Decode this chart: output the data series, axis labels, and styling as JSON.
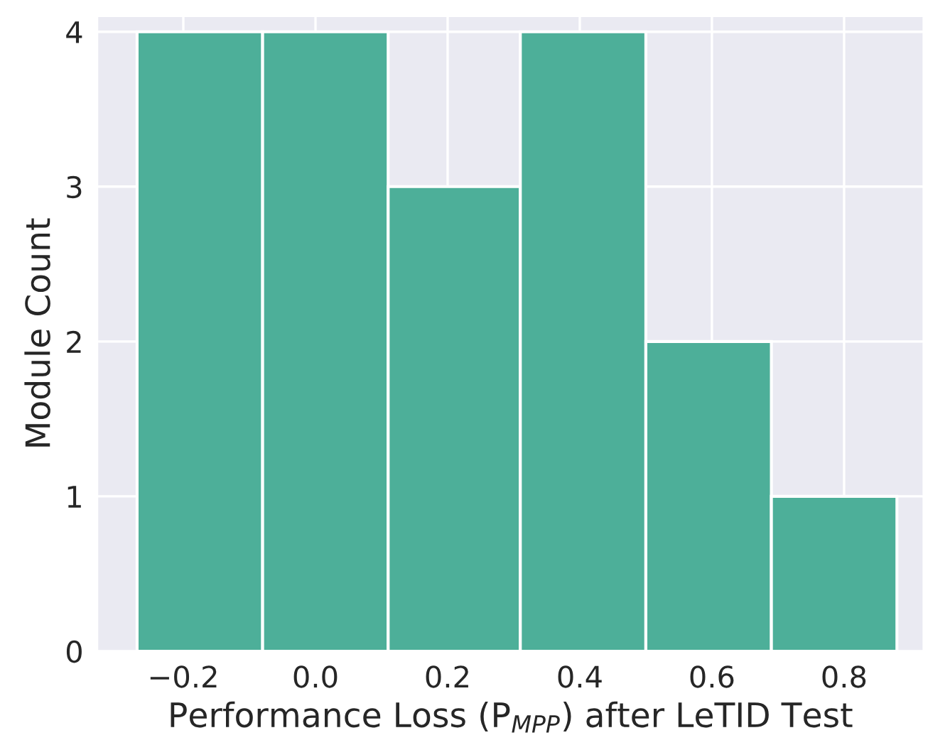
{
  "chart_data": {
    "type": "histogram",
    "xlabel": "Performance Loss (P$_{MPP}$) after LeTID Test",
    "ylabel": "Module Count",
    "bins": [
      -0.27,
      -0.08,
      0.11,
      0.31,
      0.5,
      0.69,
      0.88
    ],
    "values": [
      4,
      4,
      3,
      4,
      2,
      1
    ],
    "color": "#4daf99",
    "xlim": [
      -0.33,
      0.92
    ],
    "ylim": [
      0,
      4.1
    ],
    "xticks": [
      {
        "value": -0.2,
        "label": "−0.2"
      },
      {
        "value": 0.0,
        "label": "0.0"
      },
      {
        "value": 0.2,
        "label": "0.2"
      },
      {
        "value": 0.4,
        "label": "0.4"
      },
      {
        "value": 0.6,
        "label": "0.6"
      },
      {
        "value": 0.8,
        "label": "0.8"
      }
    ],
    "yticks": [
      0,
      1,
      2,
      3,
      4
    ],
    "grid": true
  }
}
